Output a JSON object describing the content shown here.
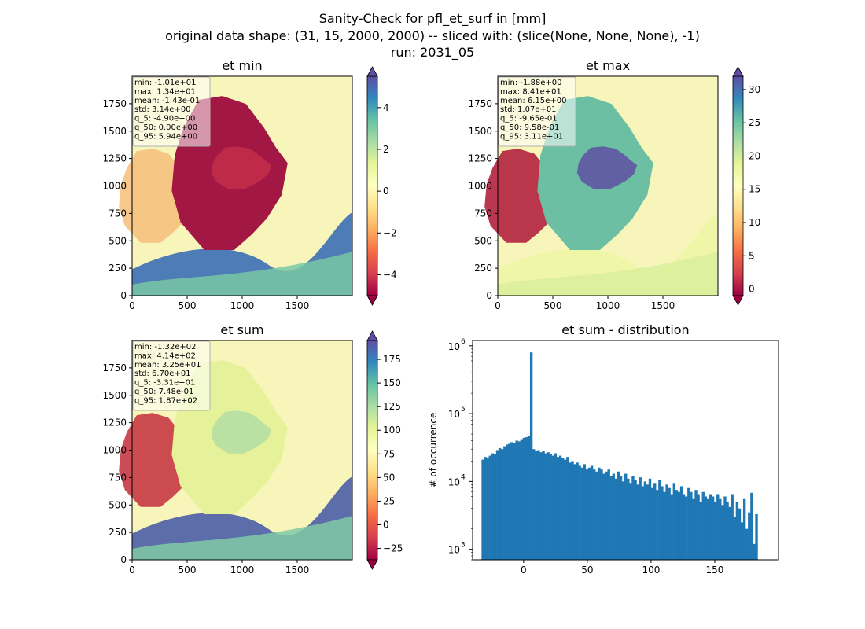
{
  "figure": {
    "title_lines": [
      "Sanity-Check for pfl_et_surf in [mm]",
      "original data shape: (31, 15, 2000, 2000) -- sliced with: (slice(None, None, None), -1)",
      "run: 2031_05"
    ]
  },
  "chart_data": [
    {
      "type": "heatmap",
      "title": "et min",
      "xlim": [
        0,
        2000
      ],
      "ylim": [
        0,
        2000
      ],
      "xticks": [
        "0",
        "500",
        "1000",
        "1500"
      ],
      "yticks": [
        "0",
        "250",
        "500",
        "750",
        "1000",
        "1250",
        "1500",
        "1750"
      ],
      "colormap": "Spectral",
      "colorbar_ticks": [
        "4",
        "2",
        "0",
        "−2",
        "−4"
      ],
      "colorbar_range": [
        -5,
        5.5
      ],
      "colorbar_extend": "both",
      "stats": [
        "min: -1.01e+01",
        "max: 1.34e+01",
        "mean: -1.43e-01",
        "std: 3.14e+00",
        "q_5: -4.90e+00",
        "q_50: 0.00e+00",
        "q_95: 5.94e+00"
      ]
    },
    {
      "type": "heatmap",
      "title": "et max",
      "xlim": [
        0,
        2000
      ],
      "ylim": [
        0,
        2000
      ],
      "xticks": [
        "0",
        "500",
        "1000",
        "1500"
      ],
      "yticks": [
        "0",
        "250",
        "500",
        "750",
        "1000",
        "1250",
        "1500",
        "1750"
      ],
      "colormap": "Spectral",
      "colorbar_ticks": [
        "30",
        "25",
        "20",
        "15",
        "10",
        "5",
        "0"
      ],
      "colorbar_range": [
        -1,
        32
      ],
      "colorbar_extend": "both",
      "stats": [
        "min: -1.88e+00",
        "max: 8.41e+01",
        "mean: 6.15e+00",
        "std: 1.07e+01",
        "q_5: -9.65e-01",
        "q_50: 9.58e-01",
        "q_95: 3.11e+01"
      ]
    },
    {
      "type": "heatmap",
      "title": "et sum",
      "xlim": [
        0,
        2000
      ],
      "ylim": [
        0,
        2000
      ],
      "xticks": [
        "0",
        "500",
        "1000",
        "1500"
      ],
      "yticks": [
        "0",
        "250",
        "500",
        "750",
        "1000",
        "1250",
        "1500",
        "1750"
      ],
      "colormap": "Spectral",
      "colorbar_ticks": [
        "175",
        "150",
        "125",
        "100",
        "75",
        "50",
        "25",
        "0",
        "−25"
      ],
      "colorbar_range": [
        -37,
        195
      ],
      "colorbar_extend": "both",
      "stats": [
        "min: -1.32e+02",
        "max: 4.14e+02",
        "mean: 3.25e+01",
        "std: 6.70e+01",
        "q_5: -3.31e+01",
        "q_50: 7.48e-01",
        "q_95: 1.87e+02"
      ]
    },
    {
      "type": "bar",
      "title": "et sum - distribution",
      "ylabel": "# of occurrence",
      "xlabel": "",
      "yscale": "log",
      "xlim": [
        -40,
        200
      ],
      "ylim": [
        700,
        1200000
      ],
      "xticks": [
        "0",
        "50",
        "100",
        "150"
      ],
      "yticks": [
        "10",
        "10",
        "10",
        "10"
      ],
      "ytick_exponents": [
        "3",
        "4",
        "5",
        "6"
      ],
      "color": "#1f77b4",
      "bin_start": -33,
      "bin_width": 1.9,
      "counts": [
        21000,
        23000,
        22000,
        24000,
        26000,
        25000,
        29000,
        31000,
        30000,
        33000,
        35000,
        36000,
        38000,
        37000,
        40000,
        39000,
        42000,
        44000,
        45000,
        47000,
        800000,
        30000,
        28000,
        29000,
        27000,
        28000,
        26000,
        27000,
        25000,
        24000,
        26000,
        23000,
        24000,
        22000,
        21000,
        23000,
        19000,
        20000,
        18000,
        19000,
        17000,
        16000,
        18000,
        15000,
        16000,
        17000,
        15000,
        14000,
        16000,
        15000,
        13000,
        14000,
        15000,
        12000,
        13000,
        11000,
        14000,
        12000,
        10000,
        13000,
        11000,
        9500,
        12000,
        10500,
        9000,
        11500,
        8500,
        10000,
        9000,
        11000,
        8000,
        9500,
        7500,
        10500,
        8500,
        7000,
        9000,
        8000,
        6500,
        9500,
        7500,
        7000,
        8500,
        6500,
        6000,
        8000,
        7000,
        5500,
        7500,
        6500,
        5000,
        7000,
        6000,
        5500,
        6500,
        6000,
        5000,
        6500,
        5500,
        4500,
        6000,
        5000,
        4200,
        6500,
        3000,
        5000,
        4000,
        2500,
        5500,
        2000,
        3500,
        6800,
        1200,
        3300
      ]
    }
  ]
}
